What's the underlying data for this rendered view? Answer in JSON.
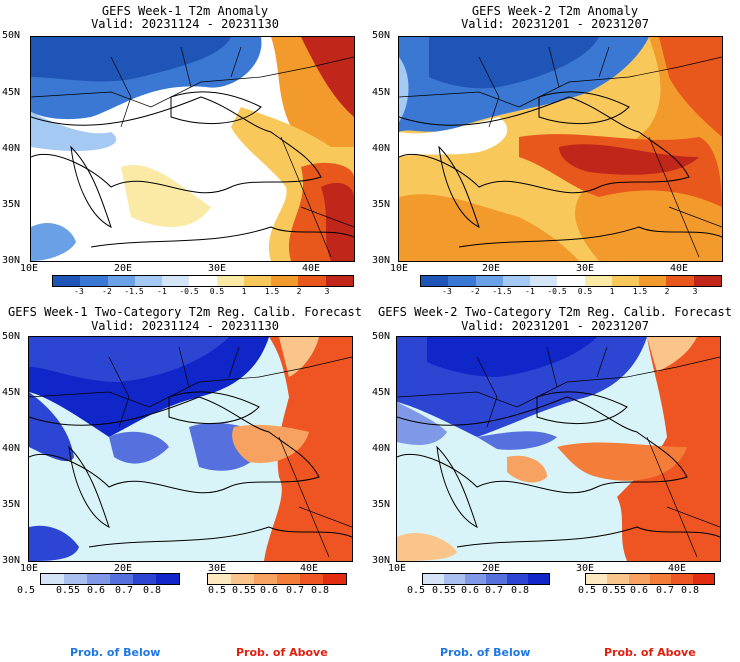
{
  "panels": [
    {
      "title1": "GEFS Week-1 T2m Anomaly",
      "title2": "Valid: 20231124 - 20231130"
    },
    {
      "title1": "GEFS Week-2 T2m Anomaly",
      "title2": "Valid: 20231201 - 20231207"
    },
    {
      "title1": "GEFS Week-1 Two-Category T2m Reg. Calib. Forecast",
      "title2": "Valid: 20231124 - 20231130"
    },
    {
      "title1": "GEFS Week-2 Two-Category T2m Reg. Calib. Forecast",
      "title2": "Valid: 20231201 - 20231207"
    }
  ],
  "lat_labels": [
    "50N",
    "45N",
    "40N",
    "35N",
    "30N"
  ],
  "lon_labels": [
    "10E",
    "20E",
    "30E",
    "40E"
  ],
  "anomaly_colorbar": {
    "ticks": [
      "-3",
      "-2",
      "-1.5",
      "-1",
      "-0.5",
      "0.5",
      "1",
      "1.5",
      "2",
      "3"
    ],
    "colors": [
      "#1f55b6",
      "#3a78d4",
      "#6aa1e6",
      "#a4c9f2",
      "#d3e6f8",
      "#ffffff",
      "#fbeaa6",
      "#f8c95a",
      "#f39a2c",
      "#e8571b",
      "#c1261b"
    ]
  },
  "prob_below_colorbar": {
    "ticks": [
      "0.5",
      "0.55",
      "0.6",
      "0.7",
      "0.8"
    ],
    "colors": [
      "#d6e4f7",
      "#a8bff0",
      "#7f98e8",
      "#5670dd",
      "#2d45d3",
      "#1026c8"
    ]
  },
  "prob_above_colorbar": {
    "ticks": [
      "0.5",
      "0.55",
      "0.6",
      "0.7",
      "0.8"
    ],
    "colors": [
      "#fde8c0",
      "#fac58a",
      "#f7a260",
      "#f47d3a",
      "#ee5522",
      "#e42c10"
    ]
  },
  "bottom_labels": {
    "left_below": "Prob. of Below",
    "left_above": "Prob. of Above",
    "right_below": "Prob. of Below",
    "right_above": "Prob. of Above"
  },
  "colors": {
    "below_label": "#1e78e0",
    "above_label": "#e02010",
    "sea_prob": "#d8f4f8"
  }
}
